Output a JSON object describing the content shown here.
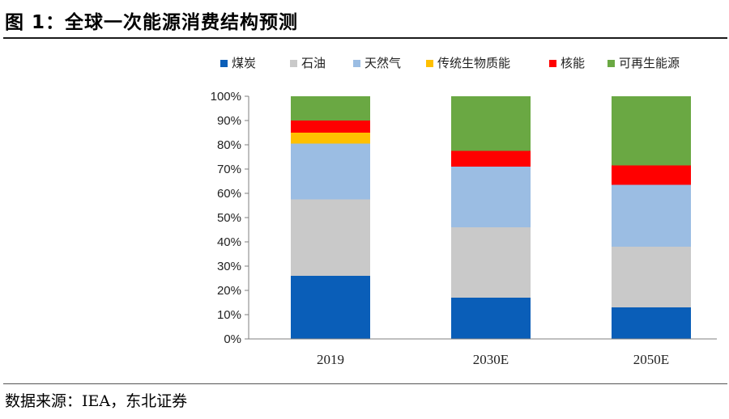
{
  "figure": {
    "title": "图 1：全球一次能源消费结构预测",
    "source": "数据来源：IEA，东北证券"
  },
  "chart_data": {
    "type": "bar",
    "stacked": true,
    "categories": [
      "2019",
      "2030E",
      "2050E"
    ],
    "series": [
      {
        "name": "煤炭",
        "color": "#0a5eb8",
        "values": [
          26,
          17,
          13
        ]
      },
      {
        "name": "石油",
        "color": "#c9c9c9",
        "values": [
          31.5,
          29,
          25
        ]
      },
      {
        "name": "天然气",
        "color": "#9bbde3",
        "values": [
          23,
          25,
          25.5
        ]
      },
      {
        "name": "传统生物质能",
        "color": "#ffc000",
        "values": [
          4.5,
          0,
          0
        ]
      },
      {
        "name": "核能",
        "color": "#ff0000",
        "values": [
          5,
          6.5,
          8
        ]
      },
      {
        "name": "可再生能源",
        "color": "#6aa843",
        "values": [
          10,
          22.5,
          28.5
        ]
      }
    ],
    "ylim": [
      0,
      100
    ],
    "yticks": [
      "0%",
      "10%",
      "20%",
      "30%",
      "40%",
      "50%",
      "60%",
      "70%",
      "80%",
      "90%",
      "100%"
    ],
    "grid": false,
    "legend_position": "top-right"
  }
}
